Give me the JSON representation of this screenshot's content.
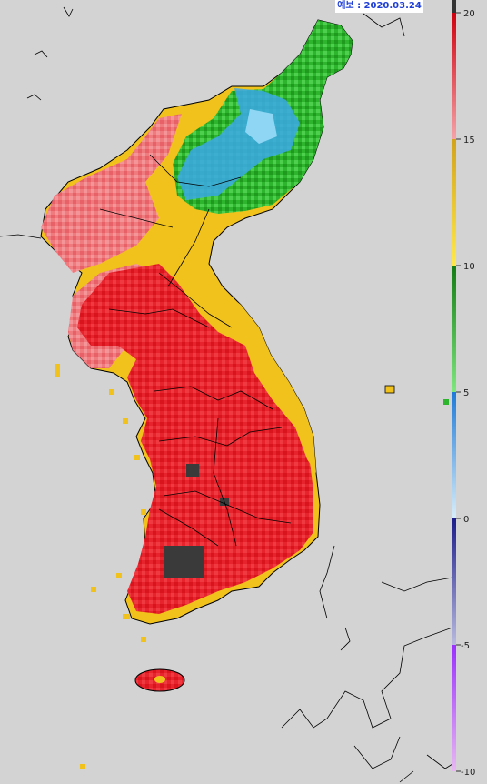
{
  "header": {
    "date_label": "예보 : 2020.03.24"
  },
  "legend": {
    "ticks": [
      "20",
      "15",
      "10",
      "5",
      "0",
      "-5",
      "-10"
    ],
    "bands": [
      {
        "from": -10,
        "to": -5,
        "color_top": "#9b30ff",
        "color_bottom": "#e8b8f2"
      },
      {
        "from": -5,
        "to": 0,
        "color_top": "#1c1c8c",
        "color_bottom": "#b9bbdf"
      },
      {
        "from": 0,
        "to": 5,
        "color_top": "#1e7ad8",
        "color_bottom": "#d8eefa"
      },
      {
        "from": 5,
        "to": 10,
        "color_top": "#137c13",
        "color_bottom": "#7ee87e"
      },
      {
        "from": 10,
        "to": 15,
        "color_top": "#d3a31a",
        "color_bottom": "#ffe94a"
      },
      {
        "from": 15,
        "to": 20,
        "color_top": "#d1000e",
        "color_bottom": "#f6a3a8"
      }
    ]
  },
  "colors": {
    "background": "#d3d3d3",
    "coastline": "#000000",
    "dark_patch": "#3a3a3a"
  }
}
